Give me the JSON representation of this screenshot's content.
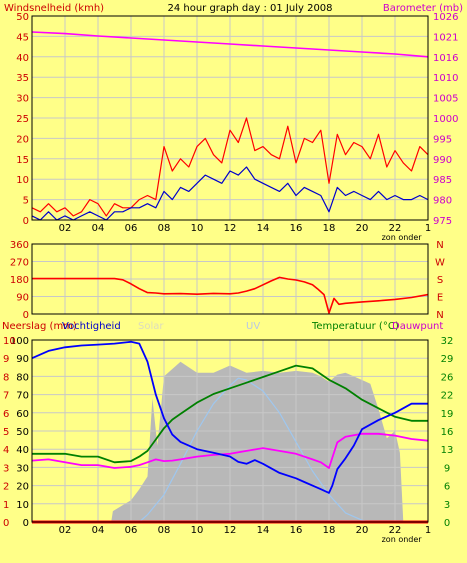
{
  "title": "24 hour graph day : 01 July 2008",
  "colors": {
    "background": "#ffff88",
    "frame": "#000000",
    "grid": "#c8c8c8",
    "left_axis_text": "#cc0000",
    "right_axis_text": "#cc00cc",
    "pressure": "#ff00ff",
    "gust": "#ff0000",
    "wind": "#0000cc",
    "direction": "#ff0000",
    "humidity": "#0000ff",
    "temperature": "#008000",
    "dewpoint": "#ff00ff",
    "solar": "#b8b8b8",
    "uv": "#9fc7ef",
    "rain": "#ff0000"
  },
  "chart_data": [
    {
      "type": "line",
      "name": "wind",
      "left_label": "Windsnelheid (kmh)",
      "right_label": "Barometer (mb)",
      "left_ticks": [
        "0",
        "5",
        "10",
        "15",
        "20",
        "25",
        "30",
        "35",
        "40",
        "45",
        "50"
      ],
      "right_ticks": [
        "975",
        "980",
        "985",
        "990",
        "995",
        "1000",
        "1005",
        "1010",
        "1016",
        "1021",
        "1026"
      ],
      "x_ticks": [
        "02",
        "04",
        "06",
        "08",
        "10",
        "12",
        "14",
        "16",
        "18",
        "20",
        "22"
      ],
      "x_end_tick": "1",
      "x_note": "zon onder",
      "ylim_left": [
        0,
        50
      ],
      "ylim_right": [
        975,
        1026
      ],
      "series": [
        {
          "name": "Barometer",
          "axis": "right",
          "x": [
            0,
            2,
            4,
            6,
            8,
            10,
            12,
            14,
            16,
            18,
            20,
            22,
            24
          ],
          "values": [
            1022,
            1021.6,
            1021,
            1020.5,
            1020,
            1019.5,
            1019,
            1018.5,
            1018,
            1017.5,
            1017,
            1016.5,
            1015.8
          ]
        },
        {
          "name": "Windstoot",
          "axis": "left",
          "x": [
            0,
            0.5,
            1,
            1.5,
            2,
            2.5,
            3,
            3.5,
            4,
            4.5,
            5,
            5.5,
            6,
            6.5,
            7,
            7.5,
            8,
            8.5,
            9,
            9.5,
            10,
            10.5,
            11,
            11.5,
            12,
            12.5,
            13,
            13.5,
            14,
            14.5,
            15,
            15.5,
            16,
            16.5,
            17,
            17.5,
            18,
            18.5,
            19,
            19.5,
            20,
            20.5,
            21,
            21.5,
            22,
            22.5,
            23,
            23.5,
            24
          ],
          "values": [
            3,
            2,
            4,
            2,
            3,
            1,
            2,
            5,
            4,
            1,
            4,
            3,
            3,
            5,
            6,
            5,
            18,
            12,
            15,
            13,
            18,
            20,
            16,
            14,
            22,
            19,
            25,
            17,
            18,
            16,
            15,
            23,
            14,
            20,
            19,
            22,
            9,
            21,
            16,
            19,
            18,
            15,
            21,
            13,
            17,
            14,
            12,
            18,
            16
          ]
        },
        {
          "name": "Windsnelheid",
          "axis": "left",
          "x": [
            0,
            0.5,
            1,
            1.5,
            2,
            2.5,
            3,
            3.5,
            4,
            4.5,
            5,
            5.5,
            6,
            6.5,
            7,
            7.5,
            8,
            8.5,
            9,
            9.5,
            10,
            10.5,
            11,
            11.5,
            12,
            12.5,
            13,
            13.5,
            14,
            14.5,
            15,
            15.5,
            16,
            16.5,
            17,
            17.5,
            18,
            18.5,
            19,
            19.5,
            20,
            20.5,
            21,
            21.5,
            22,
            22.5,
            23,
            23.5,
            24
          ],
          "values": [
            1,
            0,
            2,
            0,
            1,
            0,
            1,
            2,
            1,
            0,
            2,
            2,
            3,
            3,
            4,
            3,
            7,
            5,
            8,
            7,
            9,
            11,
            10,
            9,
            12,
            11,
            13,
            10,
            9,
            8,
            7,
            9,
            6,
            8,
            7,
            6,
            2,
            8,
            6,
            7,
            6,
            5,
            7,
            5,
            6,
            5,
            5,
            6,
            5
          ]
        }
      ]
    },
    {
      "type": "line",
      "name": "direction",
      "left_ticks": [
        "0",
        "90",
        "180",
        "270",
        "360"
      ],
      "right_ticks": [
        "N",
        "E",
        "S",
        "W",
        "N"
      ],
      "ylim": [
        0,
        360
      ],
      "series": [
        {
          "name": "Windrichting",
          "x": [
            0,
            1,
            2,
            3,
            4,
            5,
            5.5,
            6,
            6.5,
            7,
            7.5,
            8,
            9,
            10,
            11,
            12,
            12.5,
            13,
            13.5,
            14,
            14.5,
            15,
            15.5,
            16,
            16.5,
            17,
            17.3,
            17.7,
            18,
            18.3,
            18.6,
            19,
            20,
            21,
            22,
            23,
            24
          ],
          "values": [
            182,
            182,
            182,
            182,
            182,
            182,
            176,
            155,
            130,
            110,
            108,
            104,
            105,
            102,
            106,
            104,
            108,
            118,
            130,
            150,
            170,
            188,
            180,
            175,
            165,
            150,
            130,
            100,
            5,
            80,
            50,
            55,
            62,
            68,
            75,
            85,
            100
          ]
        }
      ]
    },
    {
      "type": "line",
      "name": "weather",
      "left_labels": [
        "Neerslag (mm)",
        "Vochtigheid"
      ],
      "center_labels": [
        "Solar",
        "UV"
      ],
      "right_labels": [
        "Temperatuur (°C)",
        "Dauwpunt"
      ],
      "left_ticks_rain": [
        "0",
        "1",
        "2",
        "3",
        "4",
        "5",
        "6",
        "7",
        "8",
        "9",
        "10"
      ],
      "left_ticks_humidity": [
        "0",
        "10",
        "20",
        "30",
        "40",
        "50",
        "60",
        "70",
        "80",
        "90",
        "100"
      ],
      "right_ticks": [
        "0",
        "3",
        "6",
        "9",
        "13",
        "16",
        "19",
        "22",
        "26",
        "29",
        "32"
      ],
      "ylim_left": [
        0,
        100
      ],
      "ylim_right": [
        0,
        32
      ],
      "series": [
        {
          "name": "Solar",
          "x": [
            0,
            4.8,
            4.9,
            6,
            6.5,
            7,
            7.3,
            7.6,
            8,
            9,
            10,
            11,
            12,
            13,
            14,
            15,
            16,
            17,
            17.5,
            18,
            18.5,
            19,
            20,
            20.5,
            21,
            21.5,
            22,
            22.3,
            22.5,
            24
          ],
          "values": [
            0,
            0,
            6,
            12,
            18,
            25,
            68,
            42,
            80,
            88,
            82,
            82,
            86,
            82,
            83,
            82,
            83,
            82,
            80,
            77,
            81,
            82,
            78,
            76,
            62,
            46,
            50,
            38,
            0,
            0
          ]
        },
        {
          "name": "UV",
          "x": [
            0,
            6.5,
            7,
            8,
            9,
            10,
            11,
            12,
            12.5,
            13,
            14,
            15,
            16,
            17,
            18,
            19,
            20,
            20.5,
            24
          ],
          "values": [
            0,
            0,
            4,
            15,
            32,
            50,
            65,
            75,
            79,
            78,
            72,
            60,
            44,
            28,
            15,
            5,
            1,
            0,
            0
          ]
        },
        {
          "name": "Vochtigheid",
          "x": [
            0,
            1,
            2,
            3,
            4,
            5,
            6,
            6.5,
            7,
            7.5,
            8,
            8.5,
            9,
            10,
            11,
            12,
            12.5,
            13,
            13.5,
            14,
            15,
            16,
            16.5,
            17,
            17.5,
            18,
            18.2,
            18.5,
            19,
            19.5,
            20,
            21,
            22,
            23,
            24
          ],
          "values": [
            90,
            94,
            96,
            97,
            97.5,
            98,
            99,
            98,
            88,
            70,
            57,
            48,
            44,
            40,
            38,
            36,
            33,
            32,
            34,
            32,
            27,
            24,
            22,
            20,
            18,
            16,
            20,
            29,
            35,
            42,
            51,
            56,
            60,
            65,
            65
          ]
        },
        {
          "name": "Temperatuur",
          "x": [
            0,
            1,
            2,
            3,
            4,
            5,
            6,
            6.5,
            7,
            7.5,
            8,
            8.5,
            9,
            10,
            11,
            12,
            13,
            14,
            15,
            16,
            17,
            18,
            19,
            20,
            21,
            22,
            23,
            24
          ],
          "values": [
            12.0,
            12.0,
            12.0,
            11.5,
            11.5,
            10.5,
            10.7,
            11.5,
            12.5,
            14.5,
            16.5,
            18.0,
            19.0,
            21.0,
            22.5,
            23.5,
            24.5,
            25.5,
            26.5,
            27.5,
            27.0,
            25.0,
            23.5,
            21.5,
            20.0,
            18.5,
            17.8,
            17.8
          ]
        },
        {
          "name": "Dauwpunt",
          "x": [
            0,
            1,
            2,
            3,
            4,
            5,
            6,
            6.5,
            7,
            7.5,
            8,
            8.5,
            9,
            10,
            11,
            12,
            13,
            14,
            15,
            16,
            17,
            17.5,
            18,
            18.5,
            19,
            20,
            21,
            22,
            23,
            24
          ],
          "values": [
            10.8,
            11.0,
            10.5,
            10.0,
            10.0,
            9.5,
            9.7,
            10.0,
            10.5,
            11.0,
            10.7,
            10.8,
            11.0,
            11.5,
            11.8,
            12.0,
            12.5,
            13.0,
            12.5,
            12.0,
            11.0,
            10.5,
            9.5,
            14.0,
            15.0,
            15.5,
            15.5,
            15.2,
            14.6,
            14.3
          ]
        },
        {
          "name": "Neerslag",
          "x": [
            0,
            24
          ],
          "values": [
            0,
            0
          ]
        }
      ],
      "x_ticks": [
        "02",
        "04",
        "06",
        "08",
        "10",
        "12",
        "14",
        "16",
        "18",
        "20",
        "22"
      ],
      "x_end_tick": "1",
      "x_note": "zon onder"
    }
  ]
}
